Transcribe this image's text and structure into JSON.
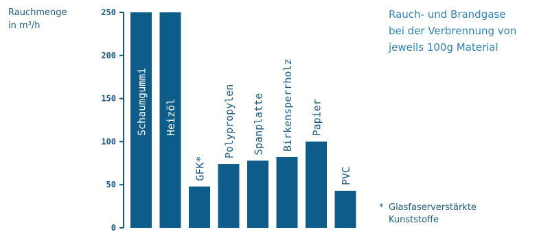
{
  "chart_data": {
    "type": "bar",
    "title": "Rauch- und Brandgase bei der Verbrennung von jeweils 100g Material",
    "title_lines": [
      "Rauch- und Brandgase",
      "bei der Verbrennung von",
      "jeweils 100g Material"
    ],
    "ylabel_lines": [
      "Rauchmenge",
      "in m³/h"
    ],
    "xlabel": "",
    "categories": [
      "Schaumgummi",
      "Heizöl",
      "GFK*",
      "Polypropylen",
      "Spanplatte",
      "Birkensperrholz",
      "Papier",
      "PVC"
    ],
    "values": [
      250,
      250,
      48,
      74,
      78,
      82,
      100,
      43
    ],
    "ylim": [
      0,
      250
    ],
    "yticks": [
      0,
      50,
      100,
      150,
      200,
      250
    ],
    "grid": false,
    "bar_color": "#0d5c89",
    "axis_color": "#1a5b86",
    "footnote_marker": "*",
    "footnote_lines": [
      "Glasfaserverstärkte",
      "Kunststoffe"
    ]
  }
}
